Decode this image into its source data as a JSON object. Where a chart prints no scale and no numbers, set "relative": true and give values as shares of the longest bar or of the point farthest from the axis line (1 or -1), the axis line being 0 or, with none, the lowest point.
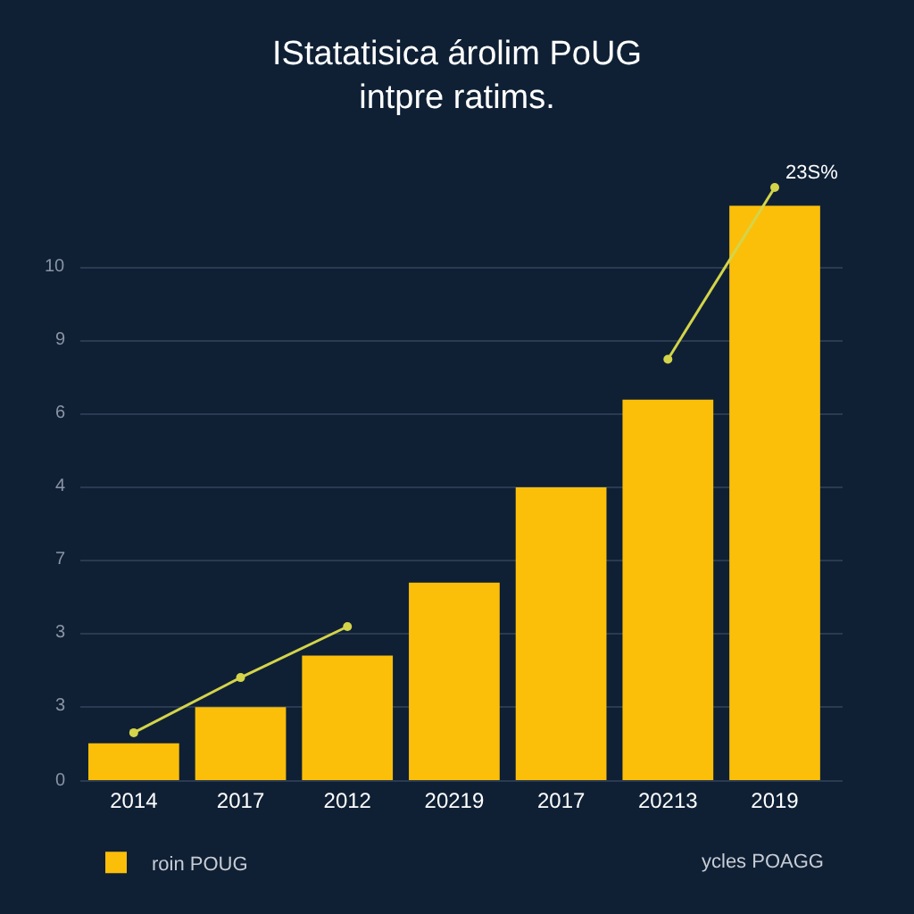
{
  "chart_data": {
    "type": "bar",
    "title": "IStatatisica árolim PoUG\nintpre ratims.",
    "categories": [
      "2014",
      "2017",
      "2012",
      "20219",
      "2017",
      "20213",
      "2019"
    ],
    "relative": true,
    "series": [
      {
        "name": "roin POUG",
        "color": "#fbbf0a",
        "values": [
          0.062,
          0.123,
          0.21,
          0.333,
          0.494,
          0.642,
          0.969
        ]
      },
      {
        "type": "line",
        "color": "#d4d44a",
        "values": [
          0.08,
          0.173,
          0.259,
          null,
          null,
          null,
          null
        ]
      },
      {
        "type": "line",
        "color": "#d4d44a",
        "values": [
          null,
          null,
          null,
          null,
          null,
          0.71,
          1
        ]
      }
    ],
    "grid": "y",
    "marker": "circle",
    "legend": "bottom",
    "annotations": [
      {
        "text": "23S%",
        "x": "2019",
        "y": 1
      },
      "0",
      "3",
      "3",
      "7",
      "4",
      "6",
      "9",
      "10",
      "ycles POAGG"
    ]
  }
}
